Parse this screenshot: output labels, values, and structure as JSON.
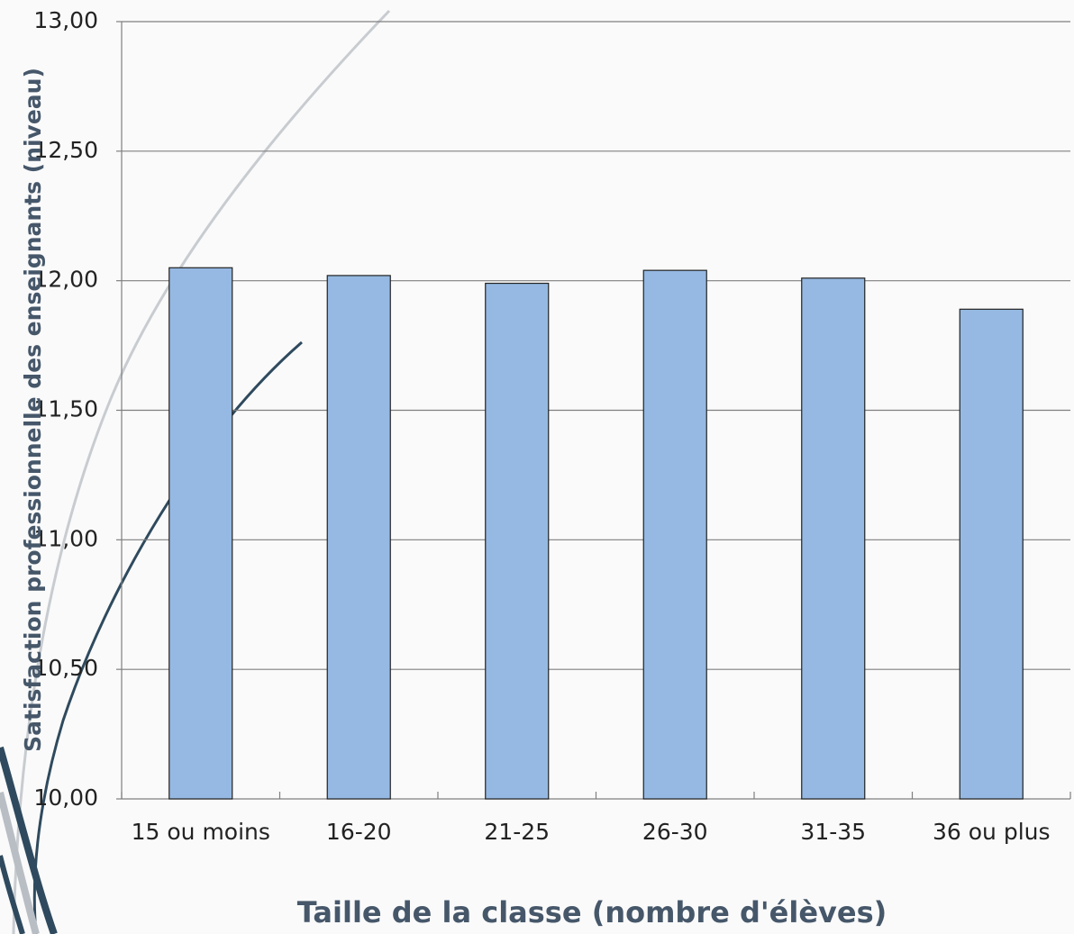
{
  "chart_data": {
    "type": "bar",
    "x_label": "Taille de la classe (nombre d'élèves)",
    "y_label": "Satisfaction professionnelle des enseignants (niveau)",
    "categories": [
      "15 ou moins",
      "16-20",
      "21-25",
      "26-30",
      "31-35",
      "36 ou plus"
    ],
    "values": [
      12.05,
      12.02,
      11.99,
      12.04,
      12.01,
      11.89
    ],
    "color": "#95b9e2",
    "ylim": [
      10,
      13
    ],
    "yticks": [
      {
        "value": 10,
        "label": "10,00"
      },
      {
        "value": 10.5,
        "label": "10,50"
      },
      {
        "value": 11,
        "label": "11,00"
      },
      {
        "value": 11.5,
        "label": "11,50"
      },
      {
        "value": 12,
        "label": "12,00"
      },
      {
        "value": 12.5,
        "label": "12,50"
      },
      {
        "value": 13,
        "label": "13,00"
      }
    ],
    "grid": true
  }
}
